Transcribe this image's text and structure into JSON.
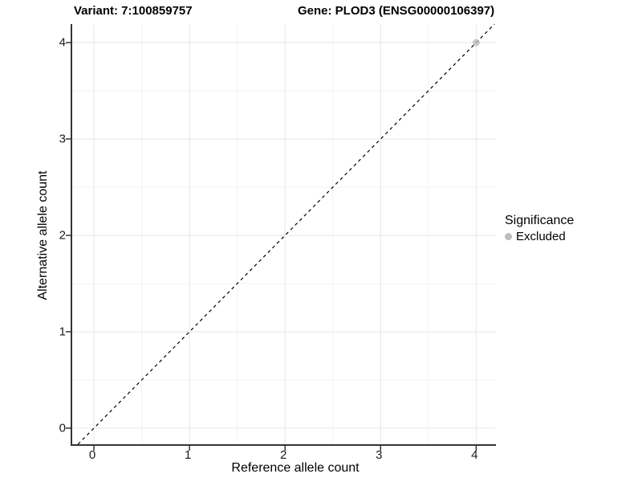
{
  "chart_data": {
    "type": "scatter",
    "title_left": "Variant: 7:100859757",
    "title_right": "Gene: PLOD3 (ENSG00000106397)",
    "xlabel": "Reference allele count",
    "ylabel": "Alternative allele count",
    "xlim": [
      -0.227,
      4.207
    ],
    "ylim": [
      -0.167,
      4.192
    ],
    "x_ticks": [
      0,
      1,
      2,
      3,
      4
    ],
    "y_ticks": [
      0,
      1,
      2,
      3,
      4
    ],
    "grid": {
      "major_color": "#e6e6e6",
      "minor_color": "#f3f3f3",
      "major_every": 1,
      "minor_every": 0.5,
      "background": "#ffffff"
    },
    "reference_line": {
      "style": "dashed",
      "slope": 1,
      "intercept": 0,
      "color": "#000000"
    },
    "series": [
      {
        "name": "Excluded",
        "color": "#bdbdbd",
        "points": [
          {
            "x": 4,
            "y": 4
          }
        ]
      }
    ],
    "legend": {
      "position": "right",
      "title": "Significance",
      "entries": [
        {
          "label": "Excluded",
          "color": "#bdbdbd"
        }
      ]
    },
    "axis_color": "#333333",
    "tick_label_color": "#1a1a1a"
  }
}
